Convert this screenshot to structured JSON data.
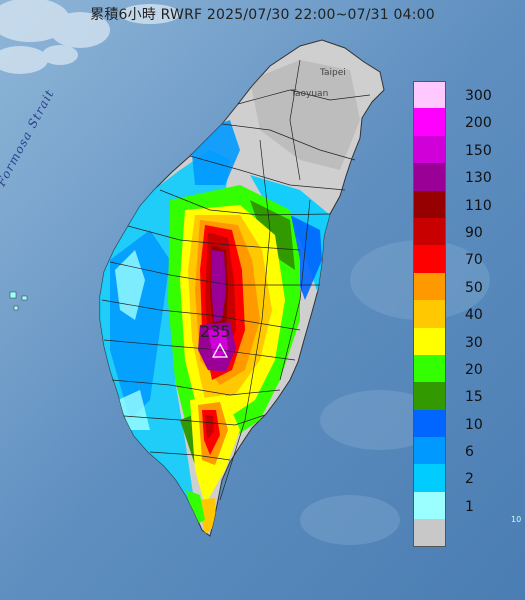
{
  "title": "累積6小時 RWRF 2025/07/30 22:00~07/31 04:00",
  "strait_label": "Formosa Strait",
  "cities": {
    "taipei": "Taipei",
    "taoyuan": "Taoyuan"
  },
  "max_value_label": "235",
  "legend": {
    "items": [
      {
        "label": "300",
        "color": "#ffc8ff"
      },
      {
        "label": "200",
        "color": "#ff00ff"
      },
      {
        "label": "150",
        "color": "#d000d8"
      },
      {
        "label": "130",
        "color": "#9a0096"
      },
      {
        "label": "110",
        "color": "#960000"
      },
      {
        "label": "90",
        "color": "#c80000"
      },
      {
        "label": "70",
        "color": "#ff0000"
      },
      {
        "label": "50",
        "color": "#ff9900"
      },
      {
        "label": "40",
        "color": "#ffc800"
      },
      {
        "label": "30",
        "color": "#ffff00"
      },
      {
        "label": "20",
        "color": "#33ff00"
      },
      {
        "label": "15",
        "color": "#339900"
      },
      {
        "label": "10",
        "color": "#0066ff"
      },
      {
        "label": "6",
        "color": "#0099ff"
      },
      {
        "label": "2",
        "color": "#00ccff"
      },
      {
        "label": "1",
        "color": "#9cffff"
      },
      {
        "label": "",
        "color": "#c8c8c8"
      }
    ]
  },
  "edge_text": "10"
}
